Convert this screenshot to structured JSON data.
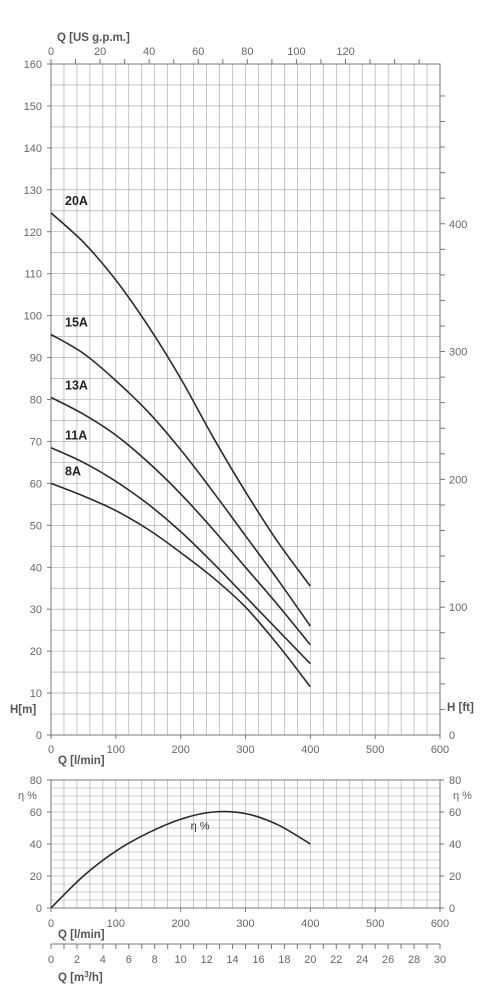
{
  "chart_data": [
    {
      "type": "line",
      "title": "",
      "xlabel": "Q [l/min]",
      "ylabel": "H[m]",
      "x_ticks": [
        0,
        100,
        200,
        300,
        400,
        500,
        600
      ],
      "y_ticks": [
        0,
        10,
        20,
        30,
        40,
        50,
        60,
        70,
        80,
        90,
        100,
        110,
        120,
        130,
        140,
        150,
        160
      ],
      "xlim": [
        0,
        600
      ],
      "ylim": [
        0,
        160
      ],
      "grid": true,
      "top_axis": {
        "label": "Q [US g.p.m.]",
        "ticks": [
          0,
          20,
          40,
          60,
          80,
          100,
          120
        ],
        "lim": [
          0,
          158.5
        ]
      },
      "right_axis": {
        "label": "H [ft]",
        "ticks": [
          0,
          100,
          200,
          300,
          400
        ],
        "lim": [
          0,
          525
        ]
      },
      "series": [
        {
          "name": "20A",
          "x": [
            0,
            50,
            100,
            150,
            200,
            250,
            300,
            350,
            400
          ],
          "values": [
            124.5,
            117.5,
            108.5,
            97.5,
            85,
            71,
            58,
            46,
            35.5
          ]
        },
        {
          "name": "15A",
          "x": [
            0,
            50,
            100,
            150,
            200,
            250,
            300,
            350,
            400
          ],
          "values": [
            95.5,
            91,
            84.5,
            77,
            68,
            58,
            47.5,
            37,
            26
          ]
        },
        {
          "name": "13A",
          "x": [
            0,
            50,
            100,
            150,
            200,
            250,
            300,
            350,
            400
          ],
          "values": [
            80.5,
            76.5,
            71.5,
            65,
            57.5,
            49,
            40,
            31,
            21.5
          ]
        },
        {
          "name": "11A",
          "x": [
            0,
            50,
            100,
            150,
            200,
            250,
            300,
            350,
            400
          ],
          "values": [
            68.5,
            65,
            60.5,
            55,
            48.5,
            41,
            33,
            25,
            17
          ]
        },
        {
          "name": "8A",
          "x": [
            0,
            50,
            100,
            150,
            200,
            250,
            300,
            350,
            400
          ],
          "values": [
            60,
            57,
            53.5,
            49,
            43.5,
            37.5,
            30.5,
            21.5,
            11.5
          ]
        }
      ]
    },
    {
      "type": "line",
      "title": "",
      "xlabel": "Q [l/min]",
      "ylabel": "η %",
      "right_ylabel": "η %",
      "x_ticks": [
        0,
        100,
        200,
        300,
        400,
        500,
        600
      ],
      "y_ticks": [
        0,
        20,
        40,
        60,
        80
      ],
      "xlim": [
        0,
        600
      ],
      "ylim": [
        0,
        80
      ],
      "grid": true,
      "bottom_axis": {
        "label": "Q [m3/h]",
        "ticks": [
          0,
          2,
          4,
          6,
          8,
          10,
          12,
          14,
          16,
          18,
          20,
          22,
          24,
          26,
          28,
          30
        ],
        "lim": [
          0,
          30
        ]
      },
      "series": [
        {
          "name": "η %",
          "x": [
            0,
            50,
            100,
            150,
            200,
            250,
            300,
            350,
            400
          ],
          "values": [
            0,
            20,
            35.5,
            47,
            55.5,
            60,
            59,
            52,
            40
          ]
        }
      ]
    }
  ]
}
